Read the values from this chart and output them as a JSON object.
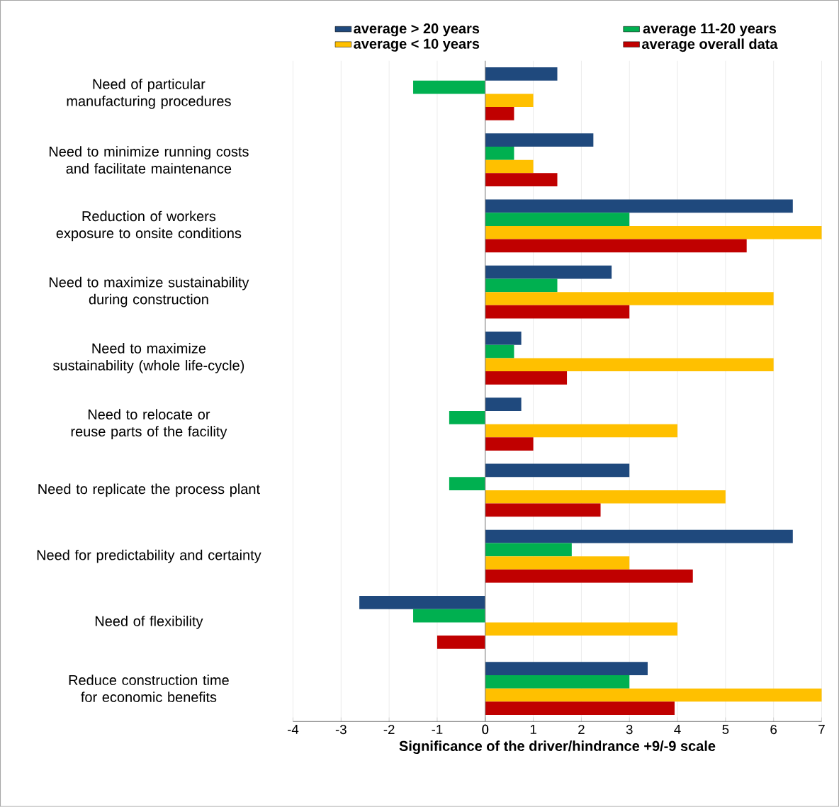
{
  "chart_data": {
    "type": "bar",
    "orientation": "horizontal",
    "xlabel": "Significance of the driver/hindrance  +9/-9 scale",
    "categories": [
      "Need of particular manufacturing procedures",
      "Need to minimize running costs and facilitate maintenance",
      "Reduction of workers exposure to onsite conditions",
      "Need to maximize sustainability during construction",
      "Need to maximize sustainability (whole life-cycle)",
      "Need to relocate or reuse parts of the facility",
      "Need to replicate the process plant",
      "Need for predictability and certainty",
      "Need of flexibility",
      "Reduce construction time for economic benefits"
    ],
    "series": [
      {
        "name": "average > 20 years",
        "color": "#1f497d",
        "values": [
          1.5,
          2.25,
          6.4,
          2.63,
          0.75,
          0.75,
          3.0,
          6.4,
          -2.62,
          3.38
        ]
      },
      {
        "name": "average 11-20 years",
        "color": "#00b050",
        "values": [
          -1.5,
          0.6,
          3.0,
          1.5,
          0.6,
          -0.75,
          -0.75,
          1.8,
          -1.5,
          3.0
        ]
      },
      {
        "name": "average < 10 years",
        "color": "#ffc000",
        "values": [
          1.0,
          1.0,
          7.0,
          6.0,
          6.0,
          4.0,
          5.0,
          3.0,
          4.0,
          7.0
        ]
      },
      {
        "name": "average overall data",
        "color": "#c00000",
        "values": [
          0.6,
          1.5,
          5.44,
          3.0,
          1.7,
          1.0,
          2.4,
          4.32,
          -1.0,
          3.94
        ]
      }
    ],
    "xlim": [
      -4,
      7
    ],
    "xticks": [
      -4,
      -3,
      -2,
      -1,
      0,
      1,
      2,
      3,
      4,
      5,
      6,
      7
    ],
    "grid": "x",
    "legend": "top"
  }
}
